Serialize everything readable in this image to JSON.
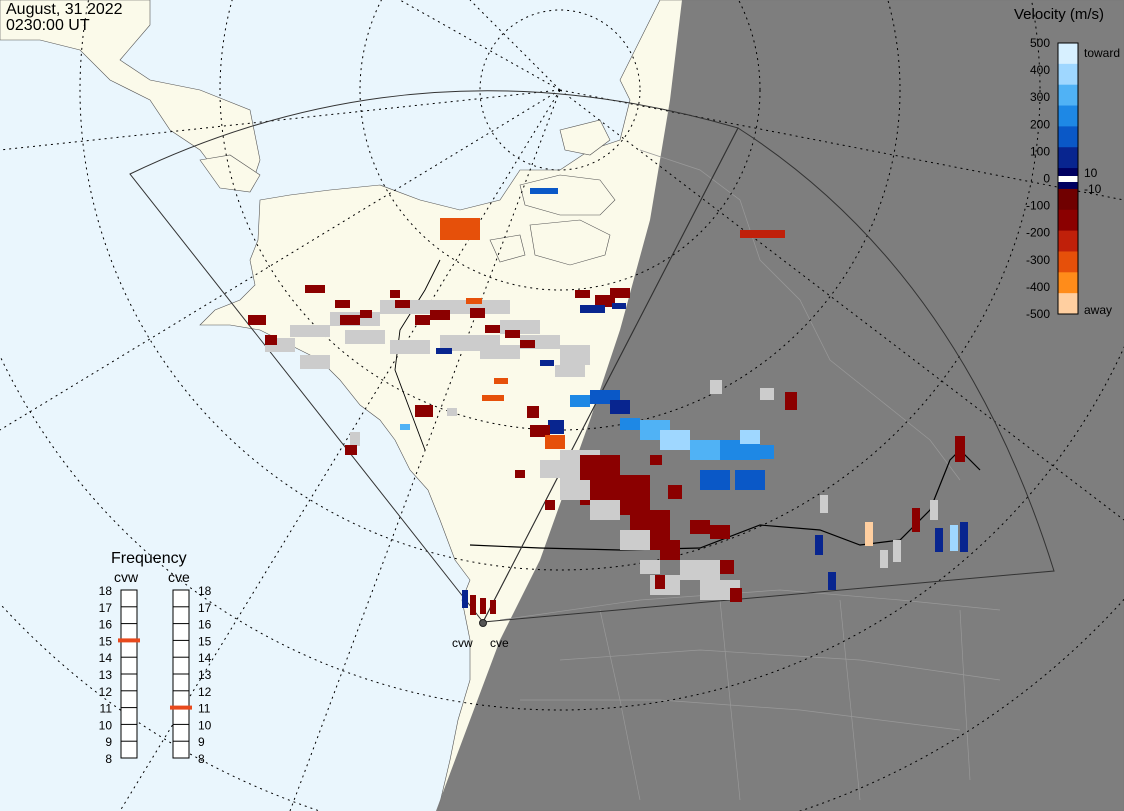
{
  "header": {
    "date": "August, 31 2022",
    "time": "0230:00 UT"
  },
  "velocity_scale": {
    "title": "Velocity (m/s)",
    "ticks": [
      "500",
      "400",
      "300",
      "200",
      "100",
      "0",
      "-100",
      "-200",
      "-300",
      "-400",
      "-500"
    ],
    "toward_label": "toward",
    "away_label": "away",
    "pos_threshold": "10",
    "neg_threshold": "-10",
    "colors": [
      "#d7f0ff",
      "#9fd7ff",
      "#50b2f5",
      "#1e88e5",
      "#0a58c7",
      "#08258f",
      "#000060",
      "#700000",
      "#8b0000",
      "#c0200a",
      "#e6500a",
      "#ff8c1a",
      "#ffcfa0"
    ]
  },
  "frequency_panel": {
    "title": "Frequency",
    "radar_west_label": "cvw",
    "radar_east_label": "cve",
    "scale": [
      "18",
      "17",
      "16",
      "15",
      "14",
      "13",
      "12",
      "11",
      "10",
      "9",
      "8"
    ],
    "cvw_mhz": 15,
    "cve_mhz": 11,
    "marker_color": "#e8491d"
  },
  "map": {
    "radar_sites": [
      "cvw",
      "cve"
    ],
    "ocean_color": "#eaf6fd",
    "land_color": "#fbfaea",
    "night_color": "#7a7a7a",
    "ground_scatter_color": "#cccccc"
  }
}
